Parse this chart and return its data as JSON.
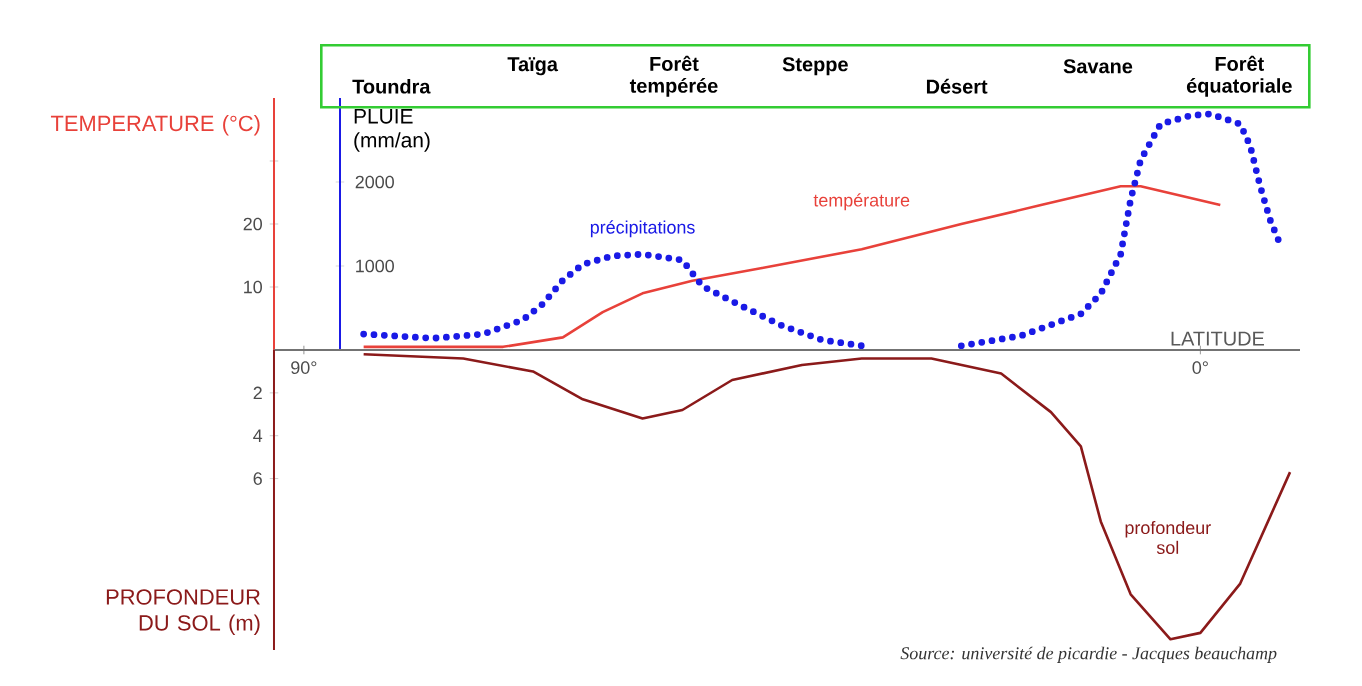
{
  "chart_data": [
    {
      "type": "line",
      "xlabel": "LATITUDE",
      "xlim": [
        93,
        -10
      ],
      "xticks": [
        {
          "value": 90,
          "label": "90°"
        },
        {
          "value": 0,
          "label": "0°"
        }
      ],
      "ylabel": "TEMPERATURE (°C)",
      "ylim": [
        0,
        40
      ],
      "yticks": [
        10,
        20,
        {
          "value": 30,
          "label": null
        }
      ],
      "y2label": "PLUIE (mm/an)",
      "y2lim": [
        0,
        3000
      ],
      "y2ticks": [
        1000,
        2000
      ],
      "series": [
        {
          "name": "température",
          "color": "#e8413a",
          "axis": "y",
          "line_style": "solid",
          "x": [
            84,
            70,
            64,
            60,
            56,
            51,
            44,
            34,
            24,
            16,
            8,
            6,
            -2
          ],
          "values": [
            0.5,
            0.5,
            2,
            6,
            9,
            11,
            13,
            16,
            20,
            23,
            26,
            26,
            23
          ]
        },
        {
          "name": "précipitations",
          "color": "#1a1ae6",
          "axis": "y2",
          "line_style": "dotted",
          "x": [
            84,
            77,
            72,
            68,
            66,
            64,
            62,
            59,
            56,
            52,
            50,
            46,
            42,
            38,
            34,
            29,
            24,
            18,
            12,
            10,
            8,
            7,
            6,
            4,
            1,
            -1,
            -4,
            -5,
            -6,
            -7,
            -8
          ],
          "values": [
            190,
            140,
            190,
            360,
            550,
            830,
            1020,
            1120,
            1140,
            1070,
            760,
            520,
            290,
            120,
            50,
            null,
            50,
            170,
            430,
            670,
            1140,
            1790,
            2260,
            2690,
            2790,
            2810,
            2690,
            2430,
            1950,
            1550,
            1260
          ]
        }
      ],
      "annotations": [
        "Toundra",
        "Taïga",
        "Forêt tempérée",
        "Steppe",
        "Désert",
        "Savane",
        "Forêt équatoriale",
        "Source: université de picardie - Jacques beauchamp"
      ]
    },
    {
      "type": "line",
      "tick_labels": "y",
      "xlim": [
        93,
        -10
      ],
      "xticks": [
        90,
        0
      ],
      "ylabel": "PROFONDEUR DU SOL (m)",
      "ylim": [
        14,
        0
      ],
      "yticks": [
        2,
        4,
        6
      ],
      "series": [
        {
          "name": "profondeur sol",
          "color": "#8b1a1a",
          "line_style": "solid",
          "x": [
            84,
            74,
            67,
            62,
            56,
            52,
            47,
            40,
            34,
            27,
            20,
            15,
            12,
            10,
            7,
            3,
            0,
            -4,
            -9
          ],
          "values": [
            0.2,
            0.4,
            1.0,
            2.3,
            3.2,
            2.8,
            1.4,
            0.7,
            0.4,
            0.4,
            1.1,
            2.9,
            4.5,
            8.0,
            11.4,
            13.5,
            13.2,
            10.9,
            5.7
          ]
        }
      ]
    }
  ]
}
